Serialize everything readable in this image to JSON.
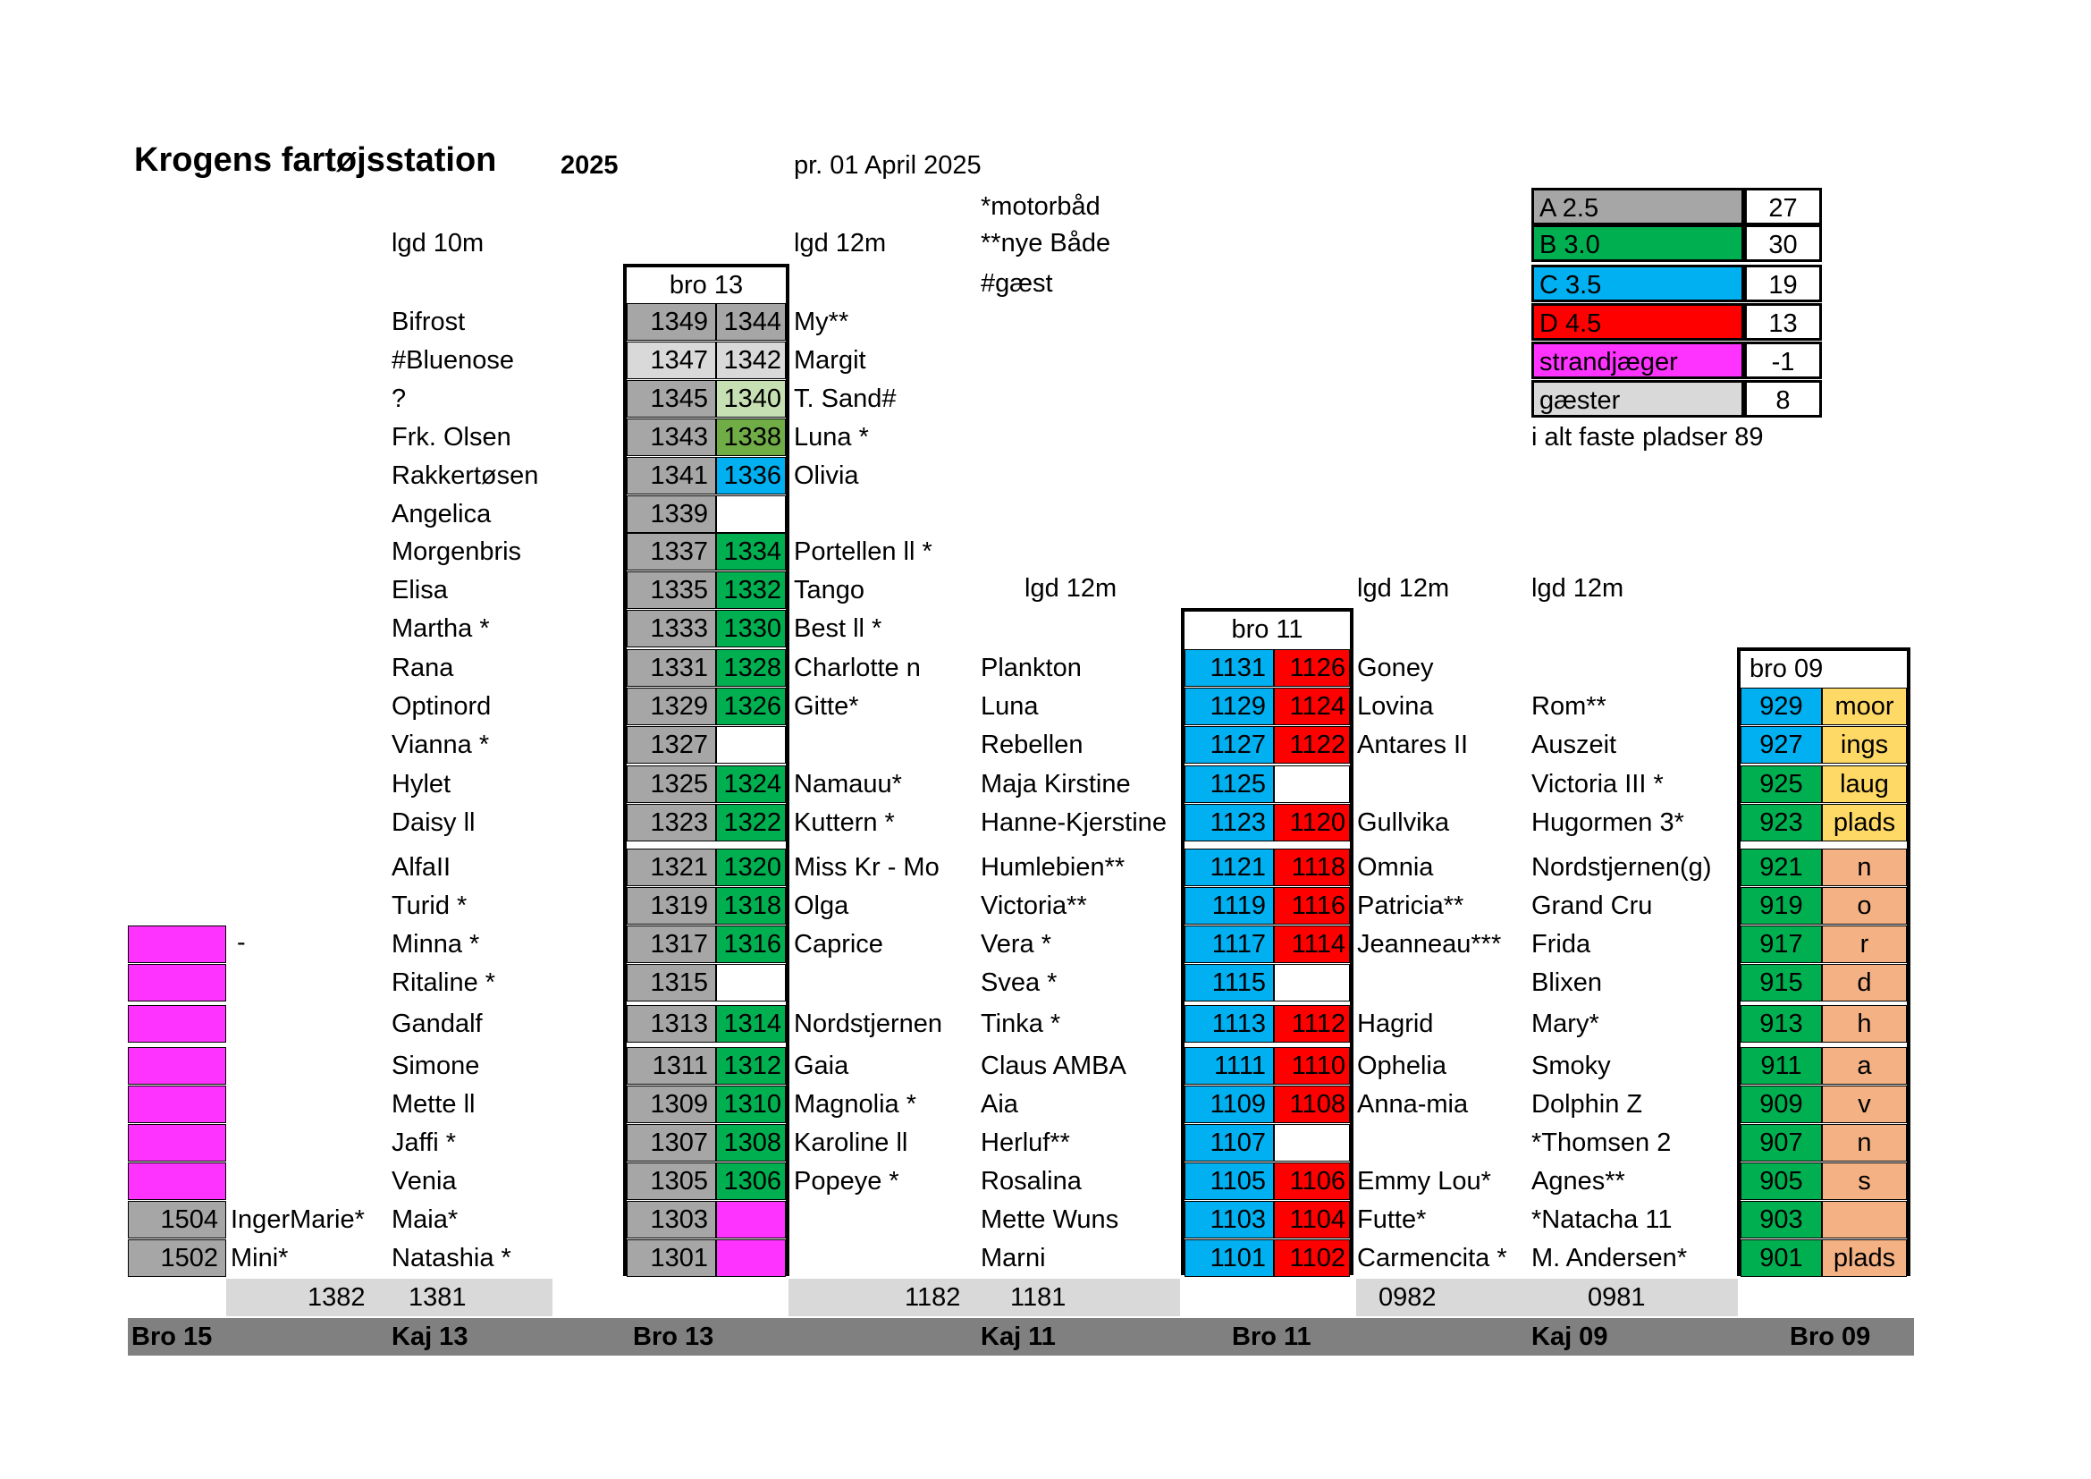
{
  "header": {
    "title": "Krogens fartøjsstation",
    "year": "2025",
    "date": "pr. 01 April 2025"
  },
  "notes": {
    "motor": "*motorbåd",
    "new": "**nye Både",
    "guest": "#gæst"
  },
  "lgd": {
    "kaj13": "lgd 10m",
    "bro13": "lgd 12m",
    "kaj11": "lgd 12m",
    "bro11_right": "lgd 12m",
    "kaj09": "lgd 12m"
  },
  "legend": {
    "rows": [
      {
        "label": "A 2.5",
        "count": "27",
        "color": "#a6a6a6",
        "text": "#000000"
      },
      {
        "label": "B 3.0",
        "count": "30",
        "color": "#00b050",
        "text": "#000000"
      },
      {
        "label": "C 3.5",
        "count": "19",
        "color": "#00b0f0",
        "text": "#000000"
      },
      {
        "label": "D 4.5",
        "count": "13",
        "color": "#ff0000",
        "text": "#000000"
      },
      {
        "label": "strandjæger",
        "count": "-1",
        "color": "#ff33ff",
        "text": "#000000"
      },
      {
        "label": "gæster",
        "count": "8",
        "color": "#d9d9d9",
        "text": "#000000"
      }
    ],
    "total": "i alt faste pladser 89"
  },
  "bro15": {
    "dash": "-",
    "berths": [
      {
        "num": "1504",
        "name": "IngerMarie*"
      },
      {
        "num": "1502",
        "name": "Mini*"
      }
    ],
    "band": "1382"
  },
  "kaj13": {
    "names": [
      "Bifrost",
      "#Bluenose",
      "?",
      "Frk. Olsen",
      "Rakkertøsen",
      "Angelica",
      "Morgenbris",
      "Elisa",
      "Martha *",
      "Rana",
      "Optinord",
      "Vianna *",
      "Hylet",
      "Daisy ll",
      "AlfaII",
      "Turid *",
      "Minna *",
      "Ritaline *",
      "Gandalf",
      "Simone",
      "Mette ll",
      "Jaffi *",
      "Venia",
      "Maia*",
      "Natashia *"
    ],
    "band": "1381"
  },
  "bro13": {
    "label": "bro 13",
    "left": [
      "1349",
      "1347",
      "1345",
      "1343",
      "1341",
      "1339",
      "1337",
      "1335",
      "1333",
      "1331",
      "1329",
      "1327",
      "1325",
      "1323",
      "1321",
      "1319",
      "1317",
      "1315",
      "1313",
      "1311",
      "1309",
      "1307",
      "1305",
      "1303",
      "1301"
    ],
    "left_colors": [
      "#a6a6a6",
      "#d9d9d9",
      "#a6a6a6",
      "#a6a6a6",
      "#a6a6a6",
      "#a6a6a6",
      "#a6a6a6",
      "#a6a6a6",
      "#a6a6a6",
      "#a6a6a6",
      "#a6a6a6",
      "#a6a6a6",
      "#a6a6a6",
      "#a6a6a6",
      "#a6a6a6",
      "#a6a6a6",
      "#a6a6a6",
      "#a6a6a6",
      "#a6a6a6",
      "#a6a6a6",
      "#a6a6a6",
      "#a6a6a6",
      "#a6a6a6",
      "#a6a6a6",
      "#a6a6a6"
    ],
    "right": [
      "1344",
      "1342",
      "1340",
      "1338",
      "1336",
      "",
      "1334",
      "1332",
      "1330",
      "1328",
      "1326",
      "",
      "1324",
      "1322",
      "1320",
      "1318",
      "1316",
      "",
      "1314",
      "1312",
      "1310",
      "1308",
      "1306",
      "",
      ""
    ],
    "right_colors": [
      "#a6a6a6",
      "#d9d9d9",
      "#c6e0b4",
      "#70ad47",
      "#00b0f0",
      "#ffffff",
      "#00b050",
      "#00b050",
      "#00b050",
      "#00b050",
      "#00b050",
      "#ffffff",
      "#00b050",
      "#00b050",
      "#00b050",
      "#00b050",
      "#00b050",
      "#ffffff",
      "#00b050",
      "#00b050",
      "#00b050",
      "#00b050",
      "#00b050",
      "#ff33ff",
      "#ff33ff"
    ],
    "names": [
      "My**",
      "Margit",
      "T. Sand#",
      "Luna *",
      "Olivia",
      "",
      "Portellen ll *",
      "Tango",
      "Best ll *",
      "Charlotte n",
      "Gitte*",
      "",
      "Namauu*",
      "Kuttern *",
      "Miss Kr - Mo",
      "Olga",
      "Caprice",
      "",
      "Nordstjernen",
      "Gaia",
      "Magnolia *",
      "Karoline ll",
      "Popeye *",
      "",
      ""
    ]
  },
  "kaj11": {
    "names": [
      "Plankton",
      "Luna",
      "Rebellen",
      "Maja Kirstine",
      "Hanne-Kjerstine",
      "Humlebien**",
      "Victoria**",
      "Vera *",
      "Svea *",
      "Tinka *",
      "Claus AMBA",
      "Aia",
      "Herluf**",
      "Rosalina",
      "Mette Wuns",
      "Marni"
    ],
    "band": [
      "1182",
      "1181"
    ]
  },
  "bro11": {
    "label": "bro 11",
    "left": [
      "1131",
      "1129",
      "1127",
      "1125",
      "1123",
      "1121",
      "1119",
      "1117",
      "1115",
      "1113",
      "1111",
      "1109",
      "1107",
      "1105",
      "1103",
      "1101"
    ],
    "right": [
      "1126",
      "1124",
      "1122",
      "",
      "1120",
      "1118",
      "1116",
      "1114",
      "",
      "1112",
      "1110",
      "1108",
      "",
      "1106",
      "1104",
      "1102"
    ],
    "names": [
      "Goney",
      "Lovina",
      "Antares II",
      "",
      "Gullvika",
      "Omnia",
      "Patricia**",
      "Jeanneau***",
      "",
      "Hagrid",
      "Ophelia",
      "Anna-mia",
      "",
      "Emmy Lou*",
      "Futte*",
      "Carmencita *"
    ]
  },
  "kaj09": {
    "names": [
      "",
      "Rom**",
      "Auszeit",
      "Victoria III *",
      "Hugormen 3*",
      "Nordstjernen(g)",
      "Grand Cru",
      "Frida",
      "Blixen",
      "Mary*",
      "Smoky",
      "Dolphin Z",
      "*Thomsen 2",
      "Agnes**",
      "*Natacha 11",
      "M. Andersen*"
    ],
    "band": [
      "0982",
      "0981"
    ]
  },
  "bro09": {
    "label": "bro 09",
    "left": [
      "929",
      "927",
      "925",
      "923",
      "921",
      "919",
      "917",
      "915",
      "913",
      "911",
      "909",
      "907",
      "905",
      "903",
      "901"
    ],
    "left_colors": [
      "#00b0f0",
      "#00b0f0",
      "#00b050",
      "#00b050",
      "#00b050",
      "#00b050",
      "#00b050",
      "#00b050",
      "#00b050",
      "#00b050",
      "#00b050",
      "#00b050",
      "#00b050",
      "#00b050",
      "#00b050"
    ],
    "right": [
      "moor",
      "ings",
      "laug",
      "plads",
      "n",
      "o",
      "r",
      "d",
      "h",
      "a",
      "v",
      "n",
      "s",
      "",
      "plads"
    ],
    "right_colors": [
      "#ffd966",
      "#ffd966",
      "#ffd966",
      "#ffd966",
      "#f4b183",
      "#f4b183",
      "#f4b183",
      "#f4b183",
      "#f4b183",
      "#f4b183",
      "#f4b183",
      "#f4b183",
      "#f4b183",
      "#f4b183",
      "#f4b183"
    ]
  },
  "footer": [
    "Bro 15",
    "Kaj 13",
    "Bro 13",
    "Kaj 11",
    "Bro 11",
    "Kaj 09",
    "Bro 09"
  ]
}
